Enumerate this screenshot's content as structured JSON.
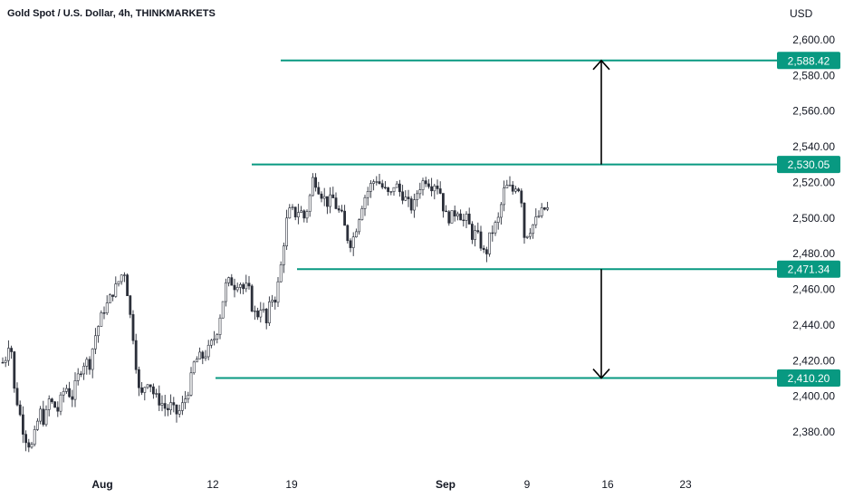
{
  "header": {
    "title": "Gold Spot / U.S. Dollar, 4h, THINKMARKETS",
    "currency": "USD"
  },
  "colors": {
    "level_line": "#089981",
    "candle": "#2a2e39",
    "arrow": "#000000",
    "label_bg": "#089981",
    "label_text": "#ffffff"
  },
  "chart_data": {
    "type": "candlestick",
    "symbol": "Gold Spot / U.S. Dollar",
    "timeframe": "4h",
    "source": "THINKMARKETS",
    "ylim": [
      2365,
      2610
    ],
    "y_ticks": [
      "2,600.00",
      "2,580.00",
      "2,560.00",
      "2,540.00",
      "2,520.00",
      "2,500.00",
      "2,480.00",
      "2,460.00",
      "2,440.00",
      "2,420.00",
      "2,400.00",
      "2,380.00"
    ],
    "y_tick_values": [
      2600,
      2580,
      2560,
      2540,
      2520,
      2500,
      2480,
      2460,
      2440,
      2420,
      2400,
      2380
    ],
    "x_ticks": [
      {
        "label": "Aug",
        "bold": true
      },
      {
        "label": "12",
        "bold": false
      },
      {
        "label": "19",
        "bold": false
      },
      {
        "label": "Sep",
        "bold": true
      },
      {
        "label": "9",
        "bold": false
      },
      {
        "label": "16",
        "bold": false
      },
      {
        "label": "23",
        "bold": false
      }
    ],
    "levels": [
      {
        "value": 2588.42,
        "label": "2,588.42"
      },
      {
        "value": 2530.05,
        "label": "2,530.05"
      },
      {
        "value": 2471.34,
        "label": "2,471.34"
      },
      {
        "value": 2410.2,
        "label": "2,410.20"
      }
    ],
    "arrows": [
      {
        "from": 2530.05,
        "to": 2588.42
      },
      {
        "from": 2471.34,
        "to": 2410.2
      }
    ],
    "trend_points": [
      [
        0,
        2420
      ],
      [
        4,
        2418
      ],
      [
        8,
        2430
      ],
      [
        12,
        2425
      ],
      [
        15,
        2402
      ],
      [
        19,
        2395
      ],
      [
        24,
        2382
      ],
      [
        29,
        2374
      ],
      [
        34,
        2372
      ],
      [
        38,
        2380
      ],
      [
        43,
        2392
      ],
      [
        48,
        2385
      ],
      [
        53,
        2398
      ],
      [
        58,
        2395
      ],
      [
        63,
        2392
      ],
      [
        68,
        2402
      ],
      [
        73,
        2405
      ],
      [
        78,
        2398
      ],
      [
        83,
        2408
      ],
      [
        88,
        2415
      ],
      [
        93,
        2420
      ],
      [
        98,
        2418
      ],
      [
        103,
        2432
      ],
      [
        108,
        2440
      ],
      [
        113,
        2448
      ],
      [
        118,
        2452
      ],
      [
        123,
        2458
      ],
      [
        128,
        2462
      ],
      [
        133,
        2468
      ],
      [
        137,
        2470
      ],
      [
        142,
        2448
      ],
      [
        147,
        2430
      ],
      [
        151,
        2408
      ],
      [
        154,
        2398
      ],
      [
        158,
        2405
      ],
      [
        163,
        2410
      ],
      [
        168,
        2402
      ],
      [
        173,
        2398
      ],
      [
        178,
        2396
      ],
      [
        183,
        2392
      ],
      [
        188,
        2395
      ],
      [
        193,
        2390
      ],
      [
        198,
        2392
      ],
      [
        203,
        2398
      ],
      [
        208,
        2405
      ],
      [
        213,
        2418
      ],
      [
        218,
        2422
      ],
      [
        223,
        2422
      ],
      [
        228,
        2425
      ],
      [
        233,
        2430
      ],
      [
        238,
        2435
      ],
      [
        243,
        2448
      ],
      [
        248,
        2462
      ],
      [
        253,
        2465
      ],
      [
        258,
        2462
      ],
      [
        263,
        2465
      ],
      [
        268,
        2460
      ],
      [
        273,
        2462
      ],
      [
        278,
        2448
      ],
      [
        283,
        2445
      ],
      [
        288,
        2452
      ],
      [
        293,
        2440
      ],
      [
        298,
        2455
      ],
      [
        303,
        2455
      ],
      [
        308,
        2468
      ],
      [
        312,
        2485
      ],
      [
        316,
        2500
      ],
      [
        320,
        2505
      ],
      [
        325,
        2502
      ],
      [
        330,
        2505
      ],
      [
        335,
        2500
      ],
      [
        340,
        2508
      ],
      [
        344,
        2522
      ],
      [
        348,
        2520
      ],
      [
        352,
        2515
      ],
      [
        356,
        2512
      ],
      [
        361,
        2508
      ],
      [
        366,
        2512
      ],
      [
        371,
        2505
      ],
      [
        376,
        2502
      ],
      [
        381,
        2492
      ],
      [
        385,
        2485
      ],
      [
        390,
        2490
      ],
      [
        395,
        2500
      ],
      [
        400,
        2510
      ],
      [
        405,
        2515
      ],
      [
        410,
        2520
      ],
      [
        415,
        2522
      ],
      [
        420,
        2518
      ],
      [
        425,
        2515
      ],
      [
        430,
        2512
      ],
      [
        435,
        2520
      ],
      [
        440,
        2515
      ],
      [
        445,
        2512
      ],
      [
        450,
        2508
      ],
      [
        455,
        2505
      ],
      [
        460,
        2515
      ],
      [
        465,
        2520
      ],
      [
        470,
        2522
      ],
      [
        475,
        2518
      ],
      [
        480,
        2520
      ],
      [
        485,
        2515
      ],
      [
        490,
        2502
      ],
      [
        495,
        2500
      ],
      [
        500,
        2502
      ],
      [
        505,
        2505
      ],
      [
        510,
        2498
      ],
      [
        515,
        2500
      ],
      [
        520,
        2490
      ],
      [
        525,
        2492
      ],
      [
        530,
        2485
      ],
      [
        535,
        2478
      ],
      [
        540,
        2490
      ],
      [
        545,
        2495
      ],
      [
        550,
        2500
      ],
      [
        555,
        2515
      ],
      [
        560,
        2518
      ],
      [
        565,
        2515
      ],
      [
        570,
        2520
      ],
      [
        575,
        2510
      ],
      [
        578,
        2490
      ],
      [
        582,
        2492
      ],
      [
        586,
        2495
      ],
      [
        590,
        2498
      ],
      [
        595,
        2502
      ],
      [
        600,
        2505
      ],
      [
        605,
        2505
      ]
    ]
  }
}
